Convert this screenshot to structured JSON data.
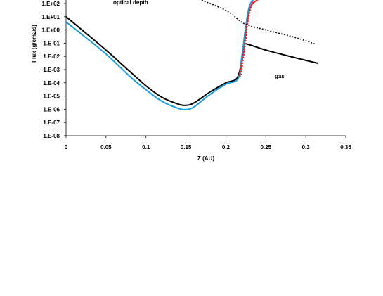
{
  "chart_data": {
    "type": "line",
    "title": "",
    "xlabel": "Z (AU)",
    "ylabel": "Flux (g/cm2/s)",
    "xlim": [
      0,
      0.35
    ],
    "ylim_log10": [
      -8,
      2
    ],
    "y_scale": "log",
    "grid": false,
    "x_ticks": [
      "0",
      "0.05",
      "0.1",
      "0.15",
      "0.2",
      "0.25",
      "0.3",
      "0.35"
    ],
    "y_ticks": [
      "1.E-08",
      "1.E-07",
      "1.E-06",
      "1.E-05",
      "1.E-04",
      "1.E-03",
      "1.E-02",
      "1.E-01",
      "1.E+00",
      "1.E+01",
      "1.E+02"
    ],
    "annotations": [
      "optical depth",
      "gas"
    ],
    "series": [
      {
        "color": "#000000",
        "style": "solid",
        "x": [
          0,
          0.02,
          0.05,
          0.08,
          0.1,
          0.12,
          0.14,
          0.15,
          0.16,
          0.18,
          0.2,
          0.215,
          0.223
        ],
        "y": [
          10,
          1,
          0.03,
          0.0007,
          6e-05,
          8e-06,
          2.5e-06,
          2e-06,
          3e-06,
          2e-05,
          0.0001,
          0.0003,
          0.06
        ]
      },
      {
        "color": "#000000",
        "style": "solid",
        "x": [
          0.223,
          0.225,
          0.25,
          0.28,
          0.3,
          0.315
        ],
        "y": [
          0.06,
          0.09,
          0.03,
          0.01,
          0.005,
          0.003
        ]
      },
      {
        "color": "#1a9fdc",
        "style": "solid",
        "x": [
          0,
          0.02,
          0.05,
          0.08,
          0.1,
          0.12,
          0.14,
          0.15,
          0.16,
          0.18,
          0.2,
          0.215,
          0.22,
          0.225,
          0.23,
          0.24
        ],
        "y": [
          4,
          0.45,
          0.015,
          0.0003,
          3e-05,
          4e-06,
          1.2e-06,
          9.5e-07,
          1.5e-06,
          1.3e-05,
          8e-05,
          0.0002,
          0.01,
          2,
          80,
          400
        ]
      },
      {
        "color": "#e82020",
        "style": "solid",
        "x": [
          0.217,
          0.222,
          0.226,
          0.23,
          0.235,
          0.245,
          0.25
        ],
        "y": [
          0.0003,
          0.02,
          2,
          40,
          120,
          300,
          500
        ]
      },
      {
        "color": "#1a9fdc",
        "style": "dotted",
        "x": [
          0.218,
          0.223,
          0.227,
          0.233,
          0.238
        ],
        "y": [
          0.0003,
          0.1,
          10,
          200,
          800
        ]
      },
      {
        "color": "#e82020",
        "style": "dotted",
        "x": [
          0.219,
          0.224,
          0.228,
          0.233,
          0.237
        ],
        "y": [
          0.0004,
          0.05,
          5,
          100,
          700
        ]
      },
      {
        "color": "#000000",
        "style": "dotted",
        "x": [
          0.16,
          0.2,
          0.223,
          0.25,
          0.28,
          0.3,
          0.313
        ],
        "y": [
          300,
          30,
          3,
          1,
          0.35,
          0.15,
          0.08
        ]
      }
    ]
  }
}
